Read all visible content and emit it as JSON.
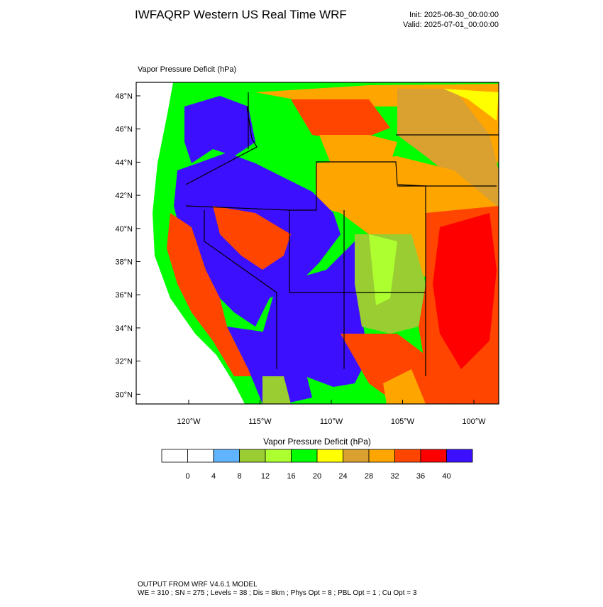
{
  "header": {
    "title": "IWFAQRP Western US Real Time WRF",
    "init": "Init: 2025-06-30_00:00:00",
    "valid": "Valid: 2025-07-01_00:00:00"
  },
  "map": {
    "label": "Vapor Pressure Deficit   (hPa)",
    "lat_ticks": [
      "48°N",
      "46°N",
      "44°N",
      "42°N",
      "40°N",
      "38°N",
      "36°N",
      "34°N",
      "32°N",
      "30°N"
    ],
    "lon_ticks": [
      "120°W",
      "115°W",
      "110°W",
      "105°W",
      "100°W"
    ]
  },
  "colorbar": {
    "title": "Vapor Pressure Deficit  (hPa)",
    "colors": [
      "#ffffff",
      "#ffffff",
      "#60b4ff",
      "#9acd32",
      "#adff2f",
      "#00ff00",
      "#ffff00",
      "#daa030",
      "#ffa500",
      "#ff4500",
      "#ff0000",
      "#3c10ff"
    ],
    "labels": [
      "0",
      "4",
      "8",
      "12",
      "16",
      "20",
      "24",
      "28",
      "32",
      "36",
      "40"
    ]
  },
  "footer": {
    "line1": "OUTPUT FROM WRF V4.6.1 MODEL",
    "line2": "WE = 310 ; SN = 275 ; Levels = 38 ; Dis = 8km ; Phys Opt = 8 ; PBL Opt = 1 ; Cu Opt = 3"
  }
}
